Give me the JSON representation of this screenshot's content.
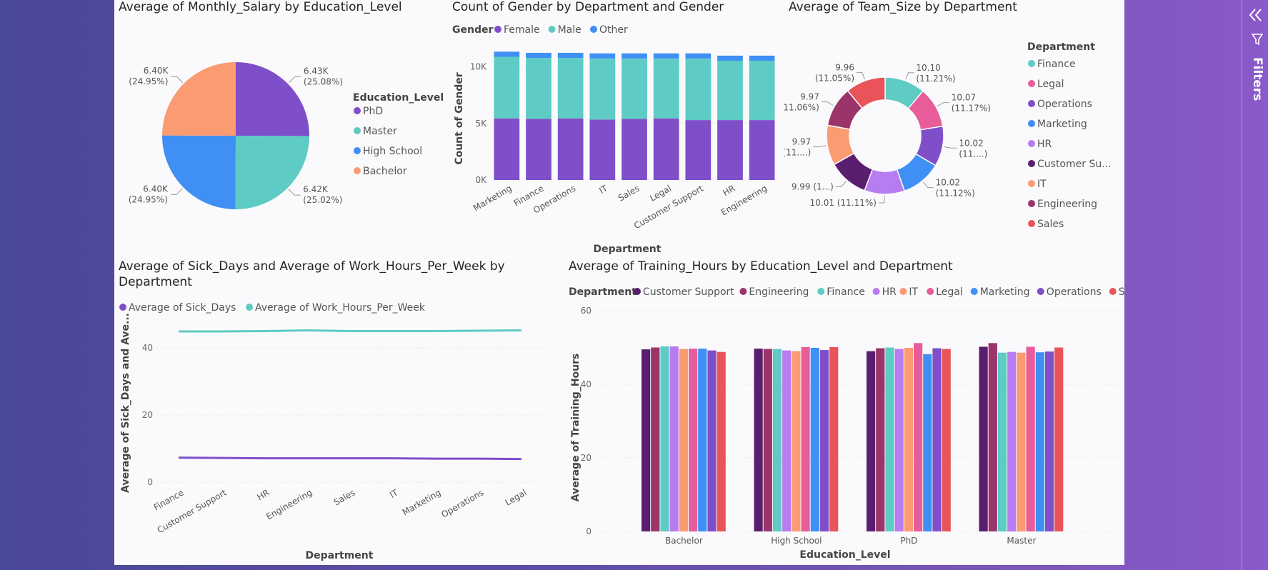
{
  "colors": {
    "purple": "#7f4fc9",
    "teal": "#5ecbc4",
    "blue": "#3f8ff5",
    "salmon": "#fb9b72",
    "pink": "#e85c9a",
    "dark_purple": "#5a1e6e",
    "violet": "#b77cf0",
    "magenta": "#9b3469",
    "red": "#e9545a"
  },
  "filters_pane": {
    "label": "Filters"
  },
  "pie": {
    "title": "Average of Monthly_Salary by Education_Level",
    "legend_title": "Education_Level",
    "labels": [
      {
        "value": "6.43K",
        "pct": "(25.08%)"
      },
      {
        "value": "6.42K",
        "pct": "(25.02%)"
      },
      {
        "value": "6.40K",
        "pct": "(24.95%)"
      },
      {
        "value": "6.40K",
        "pct": "(24.95%)"
      }
    ]
  },
  "gender": {
    "title": "Count of Gender by Department and Gender",
    "legend_title": "Gender",
    "y_axis_label": "Count of Gender",
    "x_axis_label": "Department",
    "y_ticks": [
      "0K",
      "5K",
      "10K"
    ]
  },
  "donut": {
    "title": "Average of Team_Size by Department",
    "legend_title": "Department",
    "labels": [
      {
        "value": "10.10",
        "pct": "(11.21%)"
      },
      {
        "value": "10.07",
        "pct": "(11.17%)"
      },
      {
        "value": "10.02",
        "pct": "(11....)"
      },
      {
        "value": "10.02",
        "pct": "(11.12%)"
      },
      {
        "value": "10.01 (11.11%)",
        "pct": ""
      },
      {
        "value": "9.99 (1...)",
        "pct": ""
      },
      {
        "value": "9.97",
        "pct": "(11....)"
      },
      {
        "value": "9.97",
        "pct": "(11.06%)"
      },
      {
        "value": "9.96",
        "pct": "(11.05%)"
      }
    ]
  },
  "line": {
    "title_line1": "Average of Sick_Days and Average of Work_Hours_Per_Week by",
    "title_line2": "Department",
    "y_axis_label": "Average of Sick_Days and Ave...",
    "x_axis_label": "Department",
    "y_ticks": [
      "0",
      "20",
      "40"
    ]
  },
  "training": {
    "title": "Average of Training_Hours by Education_Level and Department",
    "legend_title": "Department",
    "y_axis_label": "Average of Training_Hours",
    "x_axis_label": "Education_Level",
    "y_ticks": [
      "0",
      "20",
      "40",
      "60"
    ]
  },
  "chart_data": [
    {
      "type": "pie",
      "categories": [
        "PhD",
        "Master",
        "High School",
        "Bachelor"
      ],
      "values": [
        6430,
        6420,
        6400,
        6400
      ],
      "percentages": [
        25.08,
        25.02,
        24.95,
        24.95
      ],
      "colors": [
        "#7f4fc9",
        "#5ecbc4",
        "#3f8ff5",
        "#fb9b72"
      ],
      "legend": "right"
    },
    {
      "type": "bar",
      "stacked": true,
      "categories": [
        "Marketing",
        "Finance",
        "Operations",
        "IT",
        "Sales",
        "Legal",
        "Customer Support",
        "HR",
        "Engineering"
      ],
      "series": [
        {
          "name": "Female",
          "color": "#7f4fc9",
          "values": [
            5450,
            5400,
            5450,
            5350,
            5400,
            5450,
            5300,
            5300,
            5300
          ]
        },
        {
          "name": "Male",
          "color": "#5ecbc4",
          "values": [
            5450,
            5400,
            5350,
            5400,
            5350,
            5300,
            5450,
            5250,
            5250
          ]
        },
        {
          "name": "Other",
          "color": "#3f8ff5",
          "values": [
            450,
            450,
            450,
            450,
            450,
            450,
            450,
            450,
            450
          ]
        }
      ],
      "ylim": [
        0,
        11500
      ],
      "legend": "top-left"
    },
    {
      "type": "pie",
      "donut": true,
      "categories": [
        "Finance",
        "Legal",
        "Operations",
        "Marketing",
        "HR",
        "Customer Su...",
        "IT",
        "Engineering",
        "Sales"
      ],
      "values": [
        10.1,
        10.07,
        10.02,
        10.02,
        10.01,
        9.99,
        9.97,
        9.97,
        9.96
      ],
      "colors": [
        "#5ecbc4",
        "#e85c9a",
        "#7f4fc9",
        "#3f8ff5",
        "#b77cf0",
        "#5a1e6e",
        "#fb9b72",
        "#9b3469",
        "#e9545a"
      ],
      "legend": "right"
    },
    {
      "type": "line",
      "categories": [
        "Finance",
        "Customer Support",
        "HR",
        "Engineering",
        "Sales",
        "IT",
        "Marketing",
        "Operations",
        "Legal"
      ],
      "series": [
        {
          "name": "Average of Sick_Days",
          "color": "#7f4fc9",
          "values": [
            7.3,
            7.2,
            7.1,
            7.1,
            7.1,
            7.1,
            7.0,
            7.0,
            6.9
          ]
        },
        {
          "name": "Average of Work_Hours_Per_Week",
          "color": "#5ecbc4",
          "values": [
            44.9,
            44.9,
            45.0,
            45.2,
            45.0,
            45.0,
            45.0,
            45.1,
            45.2
          ]
        }
      ],
      "ylim": [
        0,
        50
      ],
      "legend": "top-left"
    },
    {
      "type": "bar",
      "categories": [
        "Bachelor",
        "High School",
        "PhD",
        "Master"
      ],
      "series": [
        {
          "name": "Customer Support",
          "color": "#5a1e6e",
          "values": [
            49.5,
            49.7,
            49.0,
            50.2
          ]
        },
        {
          "name": "Engineering",
          "color": "#9b3469",
          "values": [
            50.0,
            49.6,
            49.8,
            51.2
          ]
        },
        {
          "name": "Finance",
          "color": "#5ecbc4",
          "values": [
            50.3,
            49.6,
            50.0,
            48.6
          ]
        },
        {
          "name": "HR",
          "color": "#b77cf0",
          "values": [
            50.3,
            49.2,
            49.6,
            48.8
          ]
        },
        {
          "name": "IT",
          "color": "#fb9b72",
          "values": [
            49.6,
            49.0,
            49.9,
            48.6
          ]
        },
        {
          "name": "Legal",
          "color": "#e85c9a",
          "values": [
            49.7,
            50.1,
            51.2,
            50.2
          ]
        },
        {
          "name": "Marketing",
          "color": "#3f8ff5",
          "values": [
            49.7,
            49.9,
            48.2,
            48.7
          ]
        },
        {
          "name": "Operations",
          "color": "#7f4fc9",
          "values": [
            49.2,
            49.3,
            49.8,
            48.9
          ]
        },
        {
          "name": "Sales",
          "color": "#e9545a",
          "values": [
            48.8,
            50.1,
            49.6,
            50.0
          ]
        }
      ],
      "ylim": [
        0,
        60
      ],
      "legend": "top-left"
    }
  ]
}
